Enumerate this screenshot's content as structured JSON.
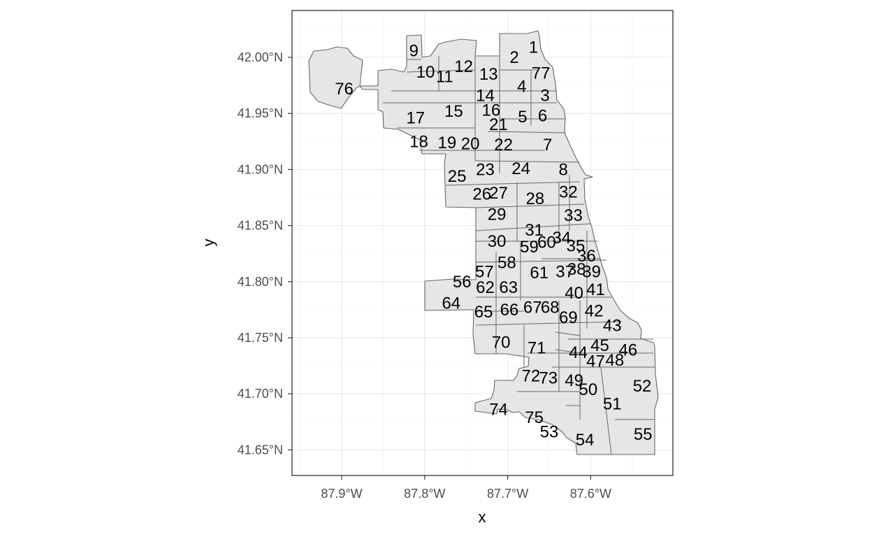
{
  "map": {
    "x_axis_title": "x",
    "y_axis_title": "y",
    "x_ticks": [
      "87.9°W",
      "87.8°W",
      "87.7°W",
      "87.6°W"
    ],
    "y_ticks": [
      "42.00°N",
      "41.95°N",
      "41.90°N",
      "41.85°N",
      "41.80°N",
      "41.75°N",
      "41.70°N",
      "41.65°N"
    ],
    "area_fill": "#e6e6e6",
    "border_color": "#666666",
    "grid_color": "#ebebeb",
    "areas": [
      {
        "id": "1",
        "lon": -87.669,
        "lat": 42.009
      },
      {
        "id": "2",
        "lon": -87.692,
        "lat": 42.0
      },
      {
        "id": "3",
        "lon": -87.655,
        "lat": 41.966
      },
      {
        "id": "4",
        "lon": -87.683,
        "lat": 41.974
      },
      {
        "id": "5",
        "lon": -87.682,
        "lat": 41.947
      },
      {
        "id": "6",
        "lon": -87.658,
        "lat": 41.948
      },
      {
        "id": "7",
        "lon": -87.652,
        "lat": 41.922
      },
      {
        "id": "8",
        "lon": -87.633,
        "lat": 41.9
      },
      {
        "id": "9",
        "lon": -87.813,
        "lat": 42.006
      },
      {
        "id": "10",
        "lon": -87.799,
        "lat": 41.987
      },
      {
        "id": "11",
        "lon": -87.776,
        "lat": 41.983
      },
      {
        "id": "12",
        "lon": -87.753,
        "lat": 41.992
      },
      {
        "id": "13",
        "lon": -87.723,
        "lat": 41.985
      },
      {
        "id": "14",
        "lon": -87.727,
        "lat": 41.966
      },
      {
        "id": "15",
        "lon": -87.765,
        "lat": 41.952
      },
      {
        "id": "16",
        "lon": -87.72,
        "lat": 41.953
      },
      {
        "id": "17",
        "lon": -87.811,
        "lat": 41.946
      },
      {
        "id": "18",
        "lon": -87.807,
        "lat": 41.925
      },
      {
        "id": "19",
        "lon": -87.773,
        "lat": 41.924
      },
      {
        "id": "20",
        "lon": -87.745,
        "lat": 41.923
      },
      {
        "id": "21",
        "lon": -87.711,
        "lat": 41.94
      },
      {
        "id": "22",
        "lon": -87.705,
        "lat": 41.922
      },
      {
        "id": "23",
        "lon": -87.727,
        "lat": 41.9
      },
      {
        "id": "24",
        "lon": -87.684,
        "lat": 41.901
      },
      {
        "id": "25",
        "lon": -87.761,
        "lat": 41.894
      },
      {
        "id": "26",
        "lon": -87.731,
        "lat": 41.878
      },
      {
        "id": "27",
        "lon": -87.711,
        "lat": 41.879
      },
      {
        "id": "28",
        "lon": -87.667,
        "lat": 41.874
      },
      {
        "id": "29",
        "lon": -87.713,
        "lat": 41.86
      },
      {
        "id": "30",
        "lon": -87.713,
        "lat": 41.836
      },
      {
        "id": "31",
        "lon": -87.668,
        "lat": 41.846
      },
      {
        "id": "32",
        "lon": -87.627,
        "lat": 41.88
      },
      {
        "id": "33",
        "lon": -87.621,
        "lat": 41.859
      },
      {
        "id": "34",
        "lon": -87.635,
        "lat": 41.839
      },
      {
        "id": "35",
        "lon": -87.618,
        "lat": 41.832
      },
      {
        "id": "36",
        "lon": -87.605,
        "lat": 41.823
      },
      {
        "id": "37",
        "lon": -87.631,
        "lat": 41.809
      },
      {
        "id": "38",
        "lon": -87.617,
        "lat": 41.811
      },
      {
        "id": "39",
        "lon": -87.599,
        "lat": 41.809
      },
      {
        "id": "40",
        "lon": -87.62,
        "lat": 41.79
      },
      {
        "id": "41",
        "lon": -87.594,
        "lat": 41.793
      },
      {
        "id": "42",
        "lon": -87.596,
        "lat": 41.774
      },
      {
        "id": "43",
        "lon": -87.574,
        "lat": 41.761
      },
      {
        "id": "44",
        "lon": -87.615,
        "lat": 41.737
      },
      {
        "id": "45",
        "lon": -87.589,
        "lat": 41.743
      },
      {
        "id": "46",
        "lon": -87.555,
        "lat": 41.739
      },
      {
        "id": "47",
        "lon": -87.594,
        "lat": 41.729
      },
      {
        "id": "48",
        "lon": -87.571,
        "lat": 41.73
      },
      {
        "id": "49",
        "lon": -87.62,
        "lat": 41.712
      },
      {
        "id": "50",
        "lon": -87.603,
        "lat": 41.704
      },
      {
        "id": "51",
        "lon": -87.574,
        "lat": 41.691
      },
      {
        "id": "52",
        "lon": -87.538,
        "lat": 41.707
      },
      {
        "id": "53",
        "lon": -87.65,
        "lat": 41.666
      },
      {
        "id": "54",
        "lon": -87.607,
        "lat": 41.659
      },
      {
        "id": "55",
        "lon": -87.537,
        "lat": 41.664
      },
      {
        "id": "56",
        "lon": -87.755,
        "lat": 41.8
      },
      {
        "id": "57",
        "lon": -87.728,
        "lat": 41.809
      },
      {
        "id": "58",
        "lon": -87.701,
        "lat": 41.817
      },
      {
        "id": "59",
        "lon": -87.674,
        "lat": 41.831
      },
      {
        "id": "60",
        "lon": -87.653,
        "lat": 41.835
      },
      {
        "id": "61",
        "lon": -87.662,
        "lat": 41.808
      },
      {
        "id": "62",
        "lon": -87.727,
        "lat": 41.795
      },
      {
        "id": "63",
        "lon": -87.699,
        "lat": 41.795
      },
      {
        "id": "64",
        "lon": -87.768,
        "lat": 41.781
      },
      {
        "id": "65",
        "lon": -87.729,
        "lat": 41.773
      },
      {
        "id": "66",
        "lon": -87.698,
        "lat": 41.775
      },
      {
        "id": "67",
        "lon": -87.67,
        "lat": 41.777
      },
      {
        "id": "68",
        "lon": -87.649,
        "lat": 41.777
      },
      {
        "id": "69",
        "lon": -87.627,
        "lat": 41.768
      },
      {
        "id": "70",
        "lon": -87.708,
        "lat": 41.746
      },
      {
        "id": "71",
        "lon": -87.665,
        "lat": 41.741
      },
      {
        "id": "72",
        "lon": -87.672,
        "lat": 41.716
      },
      {
        "id": "73",
        "lon": -87.651,
        "lat": 41.714
      },
      {
        "id": "74",
        "lon": -87.711,
        "lat": 41.686
      },
      {
        "id": "75",
        "lon": -87.668,
        "lat": 41.679
      }
    ],
    "extra_label": {
      "id": "76",
      "lon": -87.897,
      "lat": 41.972
    },
    "extra_label_2": {
      "id": "77",
      "lon": -87.66,
      "lat": 41.986
    }
  }
}
